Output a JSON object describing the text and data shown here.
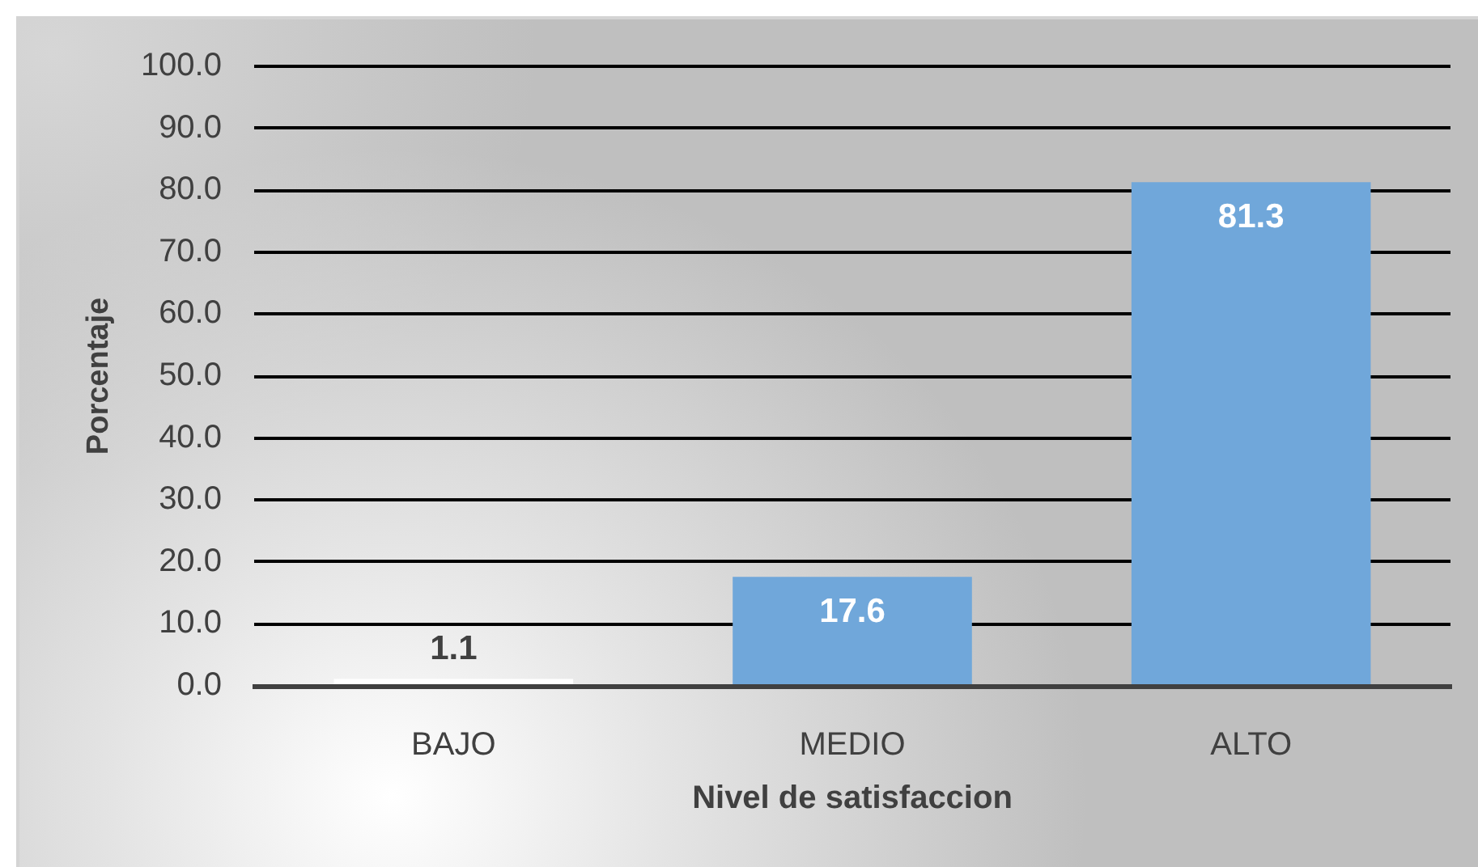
{
  "chart_data": {
    "type": "bar",
    "xlabel": "Nivel de satisfaccion",
    "ylabel": "Porcentaje",
    "categories": [
      "BAJO",
      "MEDIO",
      "ALTO"
    ],
    "values": [
      1.1,
      17.6,
      81.3
    ],
    "colors": [
      "#ffffff",
      "#70a7da",
      "#70a7da"
    ],
    "ylim": [
      0,
      100
    ],
    "yticks": [
      {
        "value": 0,
        "label": "0.0"
      },
      {
        "value": 10,
        "label": "10.0"
      },
      {
        "value": 20,
        "label": "20.0"
      },
      {
        "value": 30,
        "label": "30.0"
      },
      {
        "value": 40,
        "label": "40.0"
      },
      {
        "value": 50,
        "label": "50.0"
      },
      {
        "value": 60,
        "label": "60.0"
      },
      {
        "value": 70,
        "label": "70.0"
      },
      {
        "value": 80,
        "label": "80.0"
      },
      {
        "value": 90,
        "label": "90.0"
      },
      {
        "value": 100,
        "label": "100.0"
      }
    ],
    "grid": "y",
    "data_labels": true
  }
}
